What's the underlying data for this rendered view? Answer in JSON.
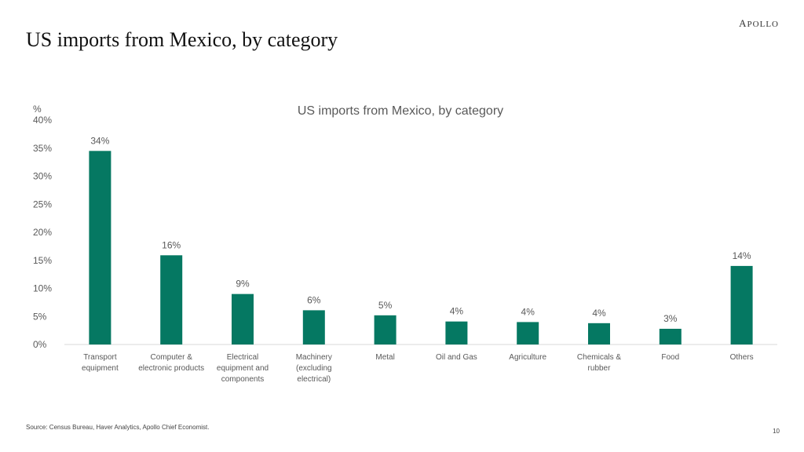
{
  "slide": {
    "title": "US imports from Mexico, by category",
    "brand": "APOLLO",
    "source": "Source: Census Bureau, Haver Analytics, Apollo Chief Economist.",
    "page_number": "10"
  },
  "colors": {
    "bar": "#057862",
    "axis_line": "#d9d9d9",
    "text": "#595959"
  },
  "chart_data": {
    "type": "bar",
    "title": "US imports from Mexico, by category",
    "ylabel": "%",
    "xlabel": "",
    "ylim": [
      0,
      40
    ],
    "yticks": [
      0,
      5,
      10,
      15,
      20,
      25,
      30,
      35,
      40
    ],
    "ytick_labels": [
      "0%",
      "5%",
      "10%",
      "15%",
      "20%",
      "25%",
      "30%",
      "35%",
      "40%"
    ],
    "grid": false,
    "legend": "none",
    "categories": [
      [
        "Transport",
        "equipment"
      ],
      [
        "Computer &",
        "electronic products"
      ],
      [
        "Electrical",
        "equipment and",
        "components"
      ],
      [
        "Machinery",
        "(excluding",
        "electrical)"
      ],
      [
        "Metal"
      ],
      [
        "Oil and Gas"
      ],
      [
        "Agriculture"
      ],
      [
        "Chemicals &",
        "rubber"
      ],
      [
        "Food"
      ],
      [
        "Others"
      ]
    ],
    "values": [
      34.5,
      15.9,
      9.0,
      6.1,
      5.2,
      4.1,
      4.0,
      3.8,
      2.8,
      14.0
    ],
    "data_labels": [
      "34%",
      "16%",
      "9%",
      "6%",
      "5%",
      "4%",
      "4%",
      "4%",
      "3%",
      "14%"
    ]
  }
}
